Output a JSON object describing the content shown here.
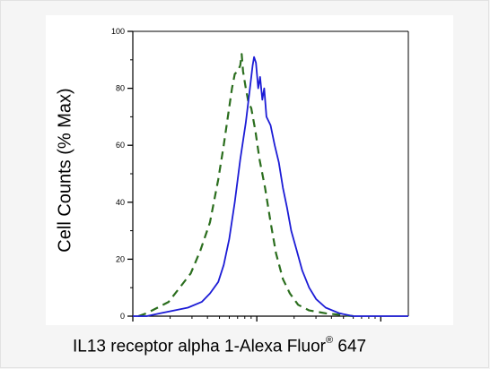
{
  "chart_data": {
    "type": "line",
    "xlabel_main": "IL13 receptor alpha 1-Alexa Fluor",
    "xlabel_sup": "®",
    "xlabel_tail": " 647",
    "ylabel": "Cell Counts (% Max)",
    "x_scale": "log",
    "y_ticks": [
      "0",
      "20",
      "40",
      "60",
      "80",
      "100"
    ],
    "ylim": [
      0,
      100
    ],
    "grid": false,
    "series": [
      {
        "color": "#2b6e1e",
        "dash": "dashed",
        "values": [
          [
            0.02,
            0
          ],
          [
            0.05,
            1
          ],
          [
            0.09,
            3
          ],
          [
            0.13,
            5
          ],
          [
            0.17,
            10
          ],
          [
            0.21,
            15
          ],
          [
            0.245,
            23
          ],
          [
            0.28,
            33
          ],
          [
            0.31,
            48
          ],
          [
            0.33,
            60
          ],
          [
            0.345,
            70
          ],
          [
            0.36,
            80
          ],
          [
            0.37,
            85
          ],
          [
            0.38,
            86
          ],
          [
            0.39,
            88
          ],
          [
            0.395,
            92
          ],
          [
            0.4,
            86
          ],
          [
            0.41,
            80
          ],
          [
            0.42,
            75
          ],
          [
            0.43,
            73
          ],
          [
            0.445,
            65
          ],
          [
            0.46,
            55
          ],
          [
            0.48,
            45
          ],
          [
            0.5,
            33
          ],
          [
            0.52,
            22
          ],
          [
            0.545,
            13
          ],
          [
            0.57,
            8
          ],
          [
            0.6,
            4
          ],
          [
            0.64,
            2
          ],
          [
            0.7,
            1
          ],
          [
            0.8,
            0
          ]
        ]
      },
      {
        "color": "#1c1cd6",
        "dash": "solid",
        "values": [
          [
            0.0,
            0
          ],
          [
            0.05,
            0
          ],
          [
            0.1,
            1
          ],
          [
            0.15,
            2
          ],
          [
            0.2,
            3
          ],
          [
            0.25,
            5
          ],
          [
            0.28,
            8
          ],
          [
            0.31,
            12
          ],
          [
            0.33,
            18
          ],
          [
            0.35,
            27
          ],
          [
            0.37,
            40
          ],
          [
            0.39,
            55
          ],
          [
            0.41,
            68
          ],
          [
            0.425,
            80
          ],
          [
            0.435,
            88
          ],
          [
            0.44,
            91
          ],
          [
            0.447,
            89
          ],
          [
            0.455,
            80
          ],
          [
            0.462,
            84
          ],
          [
            0.47,
            76
          ],
          [
            0.477,
            80
          ],
          [
            0.485,
            70
          ],
          [
            0.5,
            67
          ],
          [
            0.515,
            60
          ],
          [
            0.53,
            54
          ],
          [
            0.545,
            45
          ],
          [
            0.56,
            38
          ],
          [
            0.575,
            30
          ],
          [
            0.595,
            23
          ],
          [
            0.615,
            16
          ],
          [
            0.64,
            10
          ],
          [
            0.665,
            6
          ],
          [
            0.7,
            3
          ],
          [
            0.75,
            1
          ],
          [
            0.8,
            0
          ],
          [
            1.0,
            0
          ]
        ]
      }
    ]
  }
}
